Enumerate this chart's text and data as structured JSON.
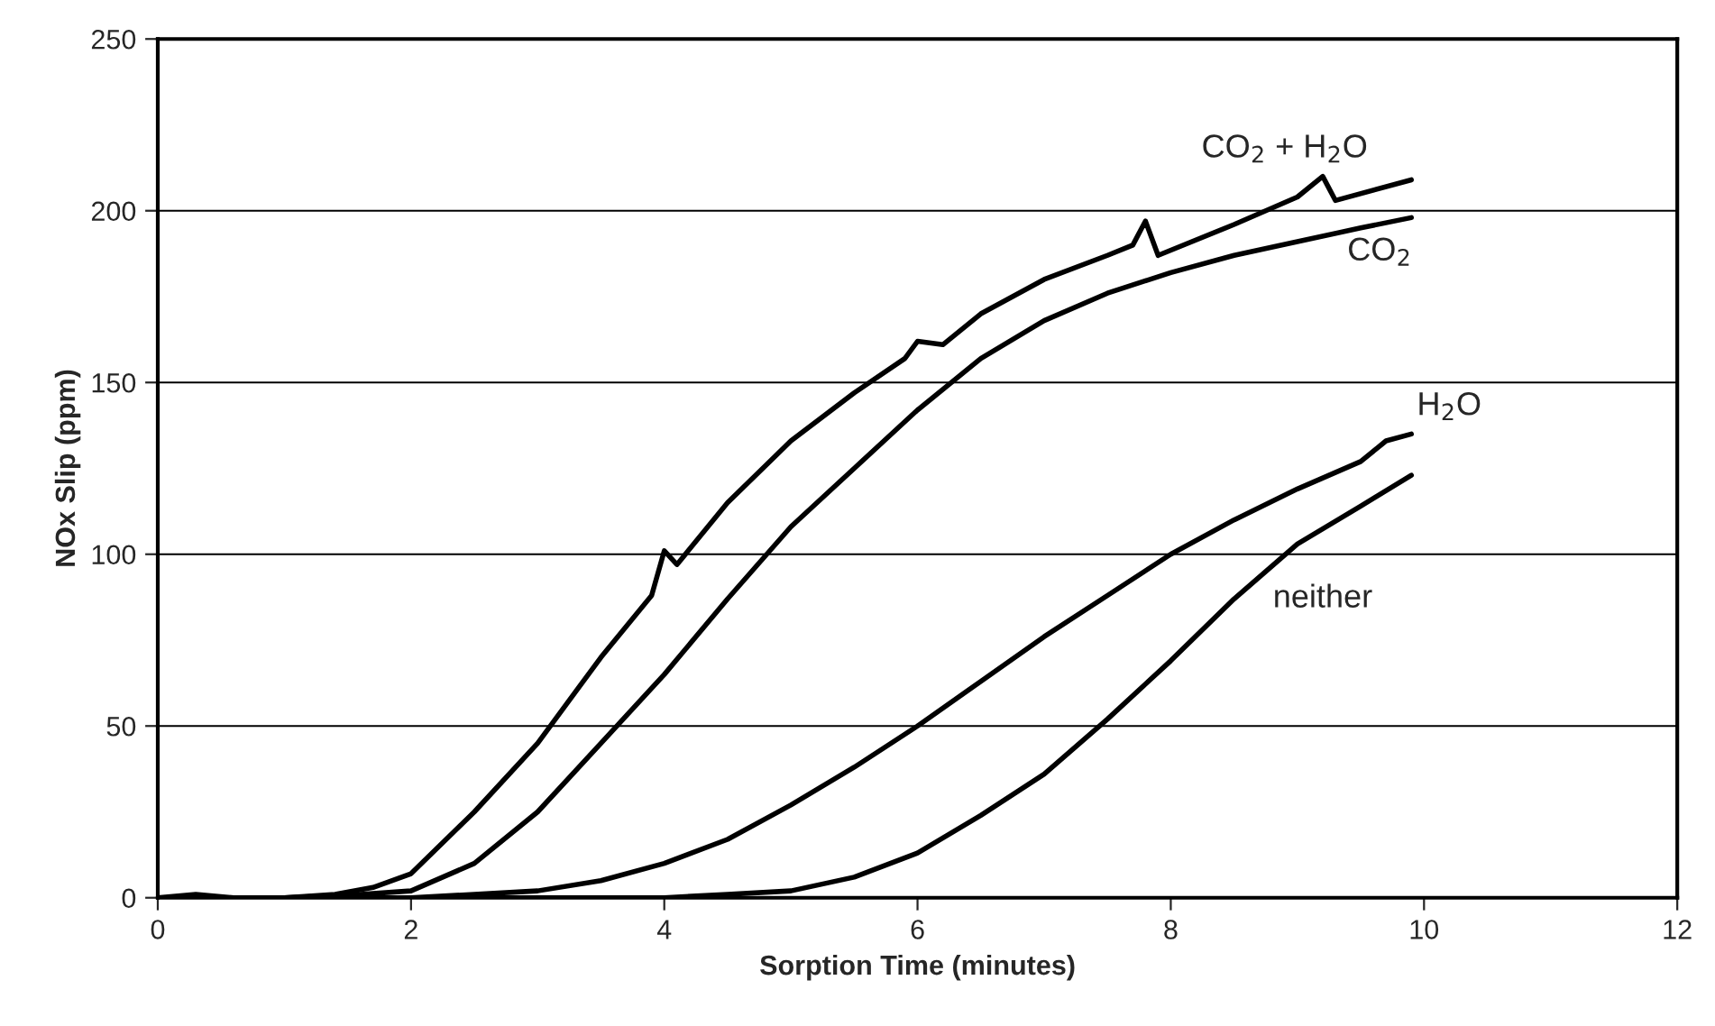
{
  "chart_data": {
    "type": "line",
    "xlabel": "Sorption Time (minutes)",
    "ylabel": "NOx Slip (ppm)",
    "xlim": [
      0,
      12
    ],
    "xticks": [
      0,
      2,
      4,
      6,
      8,
      10,
      12
    ],
    "ylim": [
      0,
      250
    ],
    "yticks": [
      0,
      50,
      100,
      150,
      200,
      250
    ],
    "grid": "y",
    "marker": "none",
    "line_style": "solid",
    "series": [
      {
        "name": "CO$_{2}$ + H$_{2}$O",
        "color": "#000000",
        "x": [
          0,
          0.3,
          0.6,
          1.0,
          1.4,
          1.7,
          2.0,
          2.5,
          3.0,
          3.5,
          3.9,
          4.0,
          4.1,
          4.5,
          5.0,
          5.5,
          5.9,
          6.0,
          6.2,
          6.5,
          7.0,
          7.5,
          7.7,
          7.8,
          7.9,
          8.5,
          9.0,
          9.2,
          9.3,
          9.9
        ],
        "values": [
          0,
          1,
          0,
          0,
          1,
          3,
          7,
          25,
          45,
          70,
          88,
          101,
          97,
          115,
          133,
          147,
          157,
          162,
          161,
          170,
          180,
          187,
          190,
          197,
          187,
          196,
          204,
          210,
          203,
          209
        ]
      },
      {
        "name": "CO$_{2}$",
        "color": "#000000",
        "x": [
          0,
          1.0,
          1.6,
          2.0,
          2.5,
          3.0,
          3.5,
          4.0,
          4.5,
          5.0,
          5.5,
          6.0,
          6.5,
          7.0,
          7.5,
          8.0,
          8.5,
          9.0,
          9.5,
          9.9
        ],
        "values": [
          0,
          0,
          1,
          2,
          10,
          25,
          45,
          65,
          87,
          108,
          125,
          142,
          157,
          168,
          176,
          182,
          187,
          191,
          195,
          198
        ]
      },
      {
        "name": "H$_{2}$O",
        "color": "#000000",
        "x": [
          0,
          1.0,
          2.0,
          2.5,
          3.0,
          3.5,
          4.0,
          4.5,
          5.0,
          5.5,
          6.0,
          6.5,
          7.0,
          7.5,
          8.0,
          8.5,
          9.0,
          9.5,
          9.7,
          9.9
        ],
        "values": [
          0,
          0,
          0,
          1,
          2,
          5,
          10,
          17,
          27,
          38,
          50,
          63,
          76,
          88,
          100,
          110,
          119,
          127,
          133,
          135
        ]
      },
      {
        "name": "neither",
        "color": "#000000",
        "x": [
          0,
          2.0,
          4.0,
          4.5,
          5.0,
          5.5,
          6.0,
          6.5,
          7.0,
          7.5,
          8.0,
          8.5,
          9.0,
          9.5,
          9.9
        ],
        "values": [
          0,
          0,
          0,
          1,
          2,
          6,
          13,
          24,
          36,
          52,
          69,
          87,
          103,
          114,
          123
        ]
      }
    ]
  }
}
